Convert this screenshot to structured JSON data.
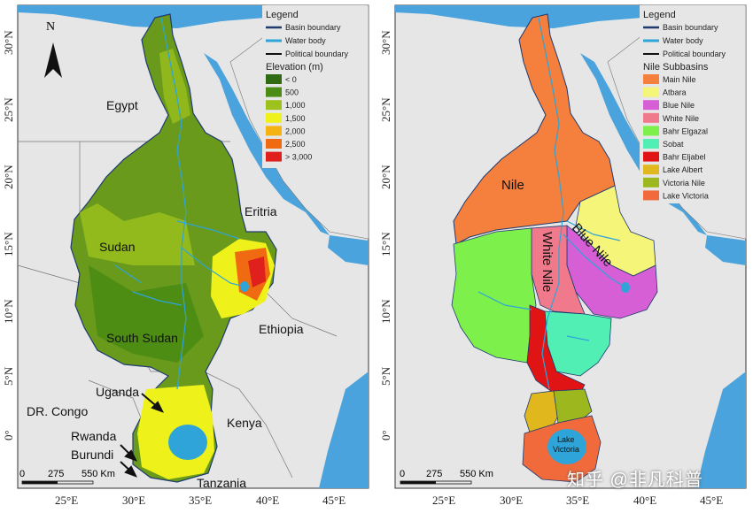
{
  "left_map": {
    "north_label": "N",
    "lat_ticks": [
      "30°N",
      "25°N",
      "20°N",
      "15°N",
      "10°N",
      "5°N",
      "0°"
    ],
    "lon_ticks": [
      "25°E",
      "30°E",
      "35°E",
      "40°E",
      "45°E"
    ],
    "legend": {
      "title": "Legend",
      "items": [
        "Basin boundary",
        "Water body",
        "Political boundary"
      ],
      "elevation_title": "Elevation (m)",
      "elevation_classes": [
        "< 0",
        "500",
        "1,000",
        "1,500",
        "2,000",
        "2,500",
        "> 3,000"
      ],
      "elevation_colors": [
        "#2f6b12",
        "#4a8c14",
        "#9dc21e",
        "#eef21a",
        "#f5b213",
        "#f06a12",
        "#e0201c"
      ]
    },
    "countries": {
      "egypt": "Egypt",
      "sudan": "Sudan",
      "south_sudan": "South Sudan",
      "eritrea": "Eritria",
      "ethiopia": "Ethiopia",
      "uganda": "Uganda",
      "kenya": "Kenya",
      "drc": "DR. Congo",
      "rwanda": "Rwanda",
      "burundi": "Burundi",
      "tanzania": "Tanzania"
    },
    "scale": {
      "ticks": [
        "0",
        "275",
        "550 Km"
      ]
    }
  },
  "right_map": {
    "lat_ticks": [
      "30°N",
      "25°N",
      "20°N",
      "15°N",
      "10°N",
      "5°N",
      "0°"
    ],
    "lon_ticks": [
      "25°E",
      "30°E",
      "35°E",
      "40°E",
      "45°E"
    ],
    "legend": {
      "title": "Legend",
      "items": [
        "Basin boundary",
        "Water body",
        "Political boundary"
      ],
      "subbasins_title": "Nile Subbasins",
      "subbasins": [
        "Main Nile",
        "Atbara",
        "Blue Nile",
        "White Nile",
        "Bahr Elgazal",
        "Sobat",
        "Bahr Eljabel",
        "Lake Albert",
        "Victoria Nile",
        "Lake Victoria"
      ],
      "subbasin_colors": [
        "#f57f3c",
        "#f5f57a",
        "#d65fd6",
        "#f07a8c",
        "#7ef04c",
        "#52efb4",
        "#e01414",
        "#e0b81e",
        "#9db81e",
        "#f06a3c"
      ]
    },
    "labels": {
      "nile": "Nile",
      "white_nile": "White Nile",
      "blue_nile": "Blue Nile",
      "lake_victoria": "Lake Victoria"
    },
    "scale": {
      "ticks": [
        "0",
        "275",
        "550 Km"
      ]
    }
  },
  "watermark": "知乎 @非凡科普",
  "colors": {
    "land": "#e6e6e6",
    "sea": "#4aa3dc",
    "basin_boundary": "#1f3a6e",
    "water_body": "#2ea4d8"
  }
}
